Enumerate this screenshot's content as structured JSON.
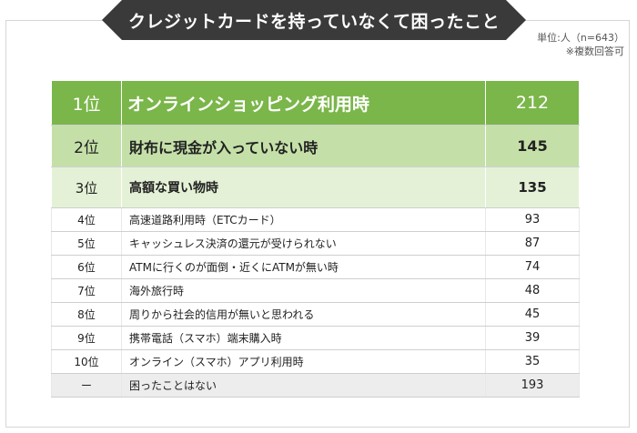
{
  "header": {
    "title": "クレジットカードを持っていなくて困ったこと",
    "unit_note": "単位:人（n=643）",
    "multi_note": "※複数回答可"
  },
  "chart_data": {
    "type": "table",
    "title": "クレジットカードを持っていなくて困ったこと",
    "columns": [
      "rank",
      "item",
      "count"
    ],
    "rows": [
      {
        "rank": "1位",
        "item": "オンラインショッピング利用時",
        "value": "212"
      },
      {
        "rank": "2位",
        "item": "財布に現金が入っていない時",
        "value": "145"
      },
      {
        "rank": "3位",
        "item": "高額な買い物時",
        "value": "135"
      },
      {
        "rank": "4位",
        "item": "高速道路利用時（ETCカード）",
        "value": "93"
      },
      {
        "rank": "5位",
        "item": "キャッシュレス決済の還元が受けられない",
        "value": "87"
      },
      {
        "rank": "6位",
        "item": "ATMに行くのが面倒・近くにATMが無い時",
        "value": "74"
      },
      {
        "rank": "7位",
        "item": "海外旅行時",
        "value": "48"
      },
      {
        "rank": "8位",
        "item": "周りから社会的信用が無いと思われる",
        "value": "45"
      },
      {
        "rank": "9位",
        "item": "携帯電話（スマホ）端末購入時",
        "value": "39"
      },
      {
        "rank": "10位",
        "item": "オンライン（スマホ）アプリ利用時",
        "value": "35"
      },
      {
        "rank": "ー",
        "item": "困ったことはない",
        "value": "193"
      }
    ],
    "colors": {
      "rank1": "#7ab649",
      "rank2": "#c4e0a8",
      "rank3": "#e4f1d6",
      "none_row": "#ededed"
    }
  }
}
